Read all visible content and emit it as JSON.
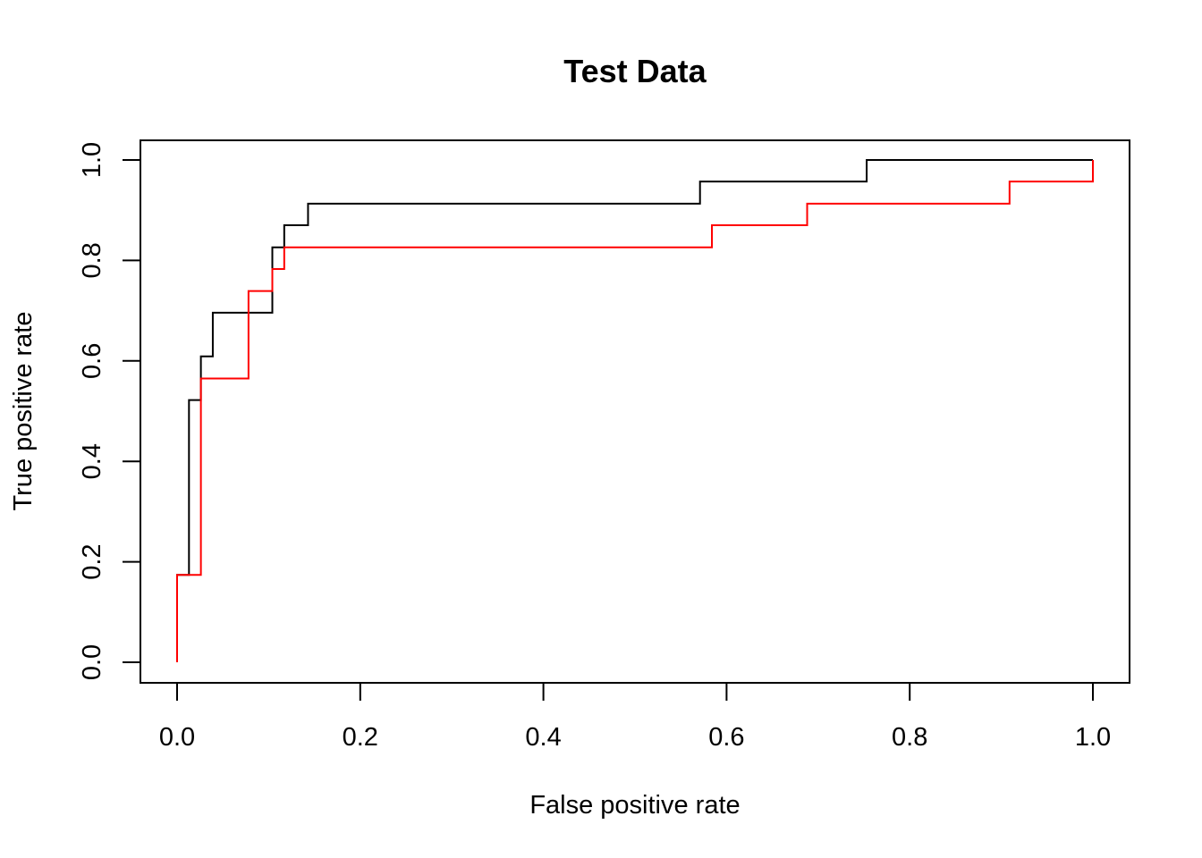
{
  "chart_data": {
    "type": "line",
    "title": "Test Data",
    "xlabel": "False positive rate",
    "ylabel": "True positive rate",
    "xlim": [
      0,
      1
    ],
    "ylim": [
      0,
      1
    ],
    "x_ticks": [
      "0.0",
      "0.2",
      "0.4",
      "0.6",
      "0.8",
      "1.0"
    ],
    "y_ticks": [
      "0.0",
      "0.2",
      "0.4",
      "0.6",
      "0.8",
      "1.0"
    ],
    "grid": false,
    "legend": "none",
    "step": true,
    "series": [
      {
        "color": "#000000",
        "x": [
          0,
          0,
          0.013,
          0.013,
          0.026,
          0.026,
          0.039,
          0.039,
          0.104,
          0.104,
          0.117,
          0.117,
          0.143,
          0.143,
          0.571,
          0.571,
          0.753,
          0.753,
          1.0
        ],
        "y": [
          0,
          0.174,
          0.174,
          0.522,
          0.522,
          0.609,
          0.609,
          0.696,
          0.696,
          0.826,
          0.826,
          0.87,
          0.87,
          0.913,
          0.913,
          0.957,
          0.957,
          1.0,
          1.0
        ]
      },
      {
        "color": "#ff0000",
        "x": [
          0,
          0,
          0.026,
          0.026,
          0.078,
          0.078,
          0.104,
          0.104,
          0.117,
          0.117,
          0.584,
          0.584,
          0.688,
          0.688,
          0.909,
          0.909,
          1.0,
          1.0
        ],
        "y": [
          0,
          0.174,
          0.174,
          0.565,
          0.565,
          0.739,
          0.739,
          0.783,
          0.783,
          0.826,
          0.826,
          0.87,
          0.87,
          0.913,
          0.913,
          0.957,
          0.957,
          1.0
        ]
      }
    ]
  }
}
